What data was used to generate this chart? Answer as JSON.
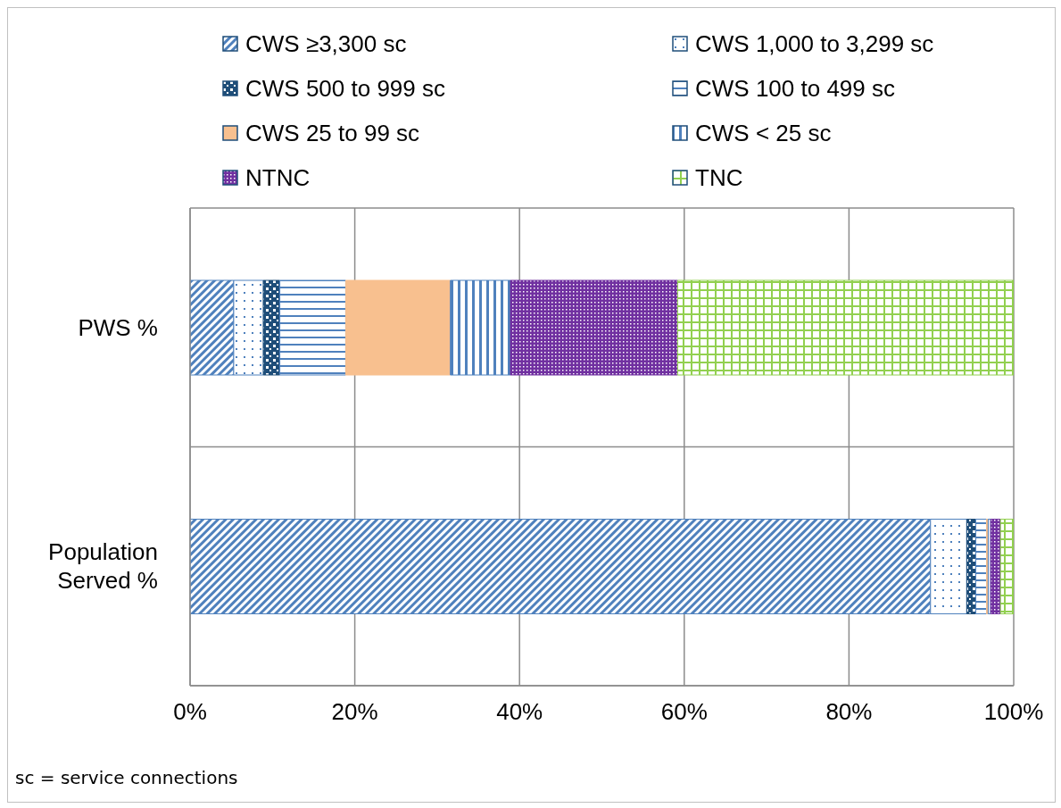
{
  "chart_data": {
    "type": "bar",
    "orientation": "horizontal",
    "stacked": true,
    "categories": [
      "PWS %",
      "Population Served  %"
    ],
    "series": [
      {
        "name": "CWS ≥3,300 sc",
        "color": "#4f81bd",
        "values": [
          5.3,
          89.9
        ]
      },
      {
        "name": "CWS 1,000 to 3,299 sc",
        "color": "#4f81bd",
        "values": [
          3.6,
          4.4
        ]
      },
      {
        "name": "CWS 500 to 999 sc",
        "color": "#1f4e79",
        "values": [
          2.0,
          1.1
        ]
      },
      {
        "name": "CWS 100 to 499 sc",
        "color": "#4f81bd",
        "values": [
          8.0,
          1.3
        ]
      },
      {
        "name": "CWS 25 to 99 sc",
        "color": "#f8c08f",
        "values": [
          12.7,
          0.2
        ]
      },
      {
        "name": "CWS < 25 sc",
        "color": "#4f81bd",
        "values": [
          7.3,
          0.3
        ]
      },
      {
        "name": "NTNC",
        "color": "#7030a0",
        "values": [
          20.3,
          1.2
        ]
      },
      {
        "name": "TNC",
        "color": "#92d050",
        "values": [
          40.8,
          1.6
        ]
      }
    ],
    "xlim": [
      0,
      100
    ],
    "xticks": [
      {
        "value": 0,
        "label": "0%"
      },
      {
        "value": 20,
        "label": "20%"
      },
      {
        "value": 40,
        "label": "40%"
      },
      {
        "value": 60,
        "label": "60%"
      },
      {
        "value": 80,
        "label": "80%"
      },
      {
        "value": 100,
        "label": "100%"
      }
    ],
    "grid": true,
    "legend": "top",
    "annotations": [
      "sc = service connections"
    ]
  }
}
